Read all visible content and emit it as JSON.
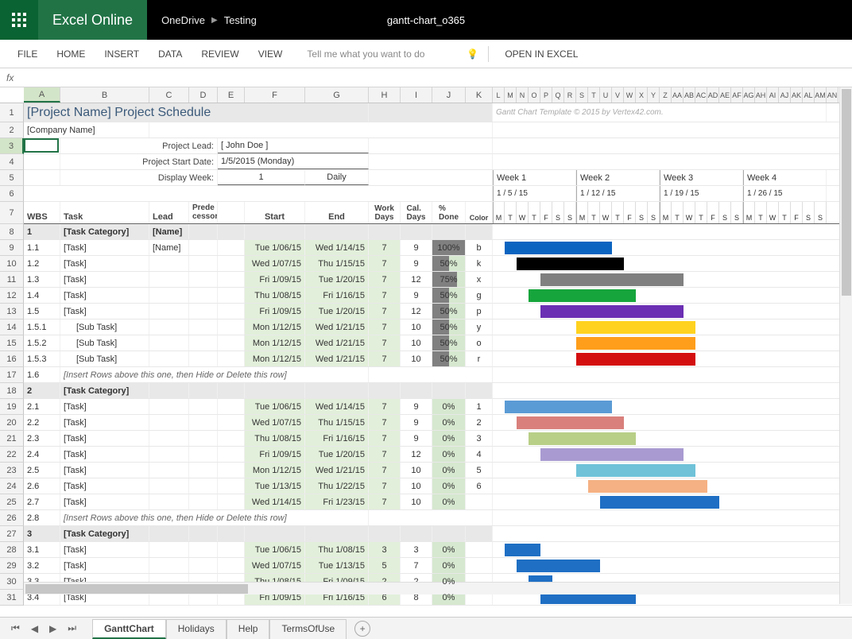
{
  "app": {
    "name": "Excel Online",
    "breadcrumb": [
      "OneDrive",
      "Testing"
    ],
    "doc_title": "gantt-chart_o365",
    "brand_color": "#217346"
  },
  "ribbon": {
    "tabs": [
      "FILE",
      "HOME",
      "INSERT",
      "DATA",
      "REVIEW",
      "VIEW"
    ],
    "tell_me_placeholder": "Tell me what you want to do",
    "open_in_excel": "OPEN IN EXCEL"
  },
  "formula_bar": {
    "label": "fx"
  },
  "columns": {
    "letters": [
      "A",
      "B",
      "C",
      "D",
      "E",
      "F",
      "G",
      "H",
      "I",
      "J",
      "K",
      "L",
      "M",
      "N",
      "O",
      "P",
      "Q",
      "R",
      "S",
      "T",
      "U",
      "V",
      "W",
      "X",
      "Y",
      "Z",
      "AA",
      "AB",
      "AC",
      "AD",
      "AE",
      "AF",
      "AG",
      "AH",
      "AI",
      "AJ",
      "AK",
      "AL",
      "AM",
      "AN"
    ],
    "widths_main": {
      "A": 46,
      "B": 112,
      "C": 50,
      "D": 36,
      "E": 34,
      "F": 76,
      "G": 80,
      "H": 40,
      "I": 40,
      "J": 42,
      "K": 34
    },
    "day_col_width": 15,
    "selected": "A"
  },
  "selection": {
    "cell": "A3",
    "row": 3,
    "col": "A"
  },
  "rows_visible": 31,
  "sheet": {
    "project_title": "[Project Name] Project Schedule",
    "watermark": "Gantt Chart Template © 2015 by Vertex42.com.",
    "company_name": "[Company Name]",
    "project_lead_label": "Project Lead:",
    "project_lead": "[ John Doe ]",
    "start_date_label": "Project Start Date:",
    "start_date": "1/5/2015 (Monday)",
    "display_week_label": "Display Week:",
    "display_week_num": "1",
    "display_week_mode": "Daily",
    "weeks": [
      {
        "label": "Week 1",
        "date": "1 / 5 / 15"
      },
      {
        "label": "Week 2",
        "date": "1 / 12 / 15"
      },
      {
        "label": "Week 3",
        "date": "1 / 19 / 15"
      },
      {
        "label": "Week 4",
        "date": "1 / 26 / 15"
      }
    ],
    "day_letters": [
      "M",
      "T",
      "W",
      "T",
      "F",
      "S",
      "S"
    ],
    "col_headers": {
      "wbs": "WBS",
      "task": "Task",
      "lead": "Lead",
      "pred": "Prede\ncessor",
      "start": "Start",
      "end": "End",
      "work": "Work\nDays",
      "cal": "Cal.\nDays",
      "done": "%\nDone",
      "color": "Color"
    },
    "tasks": [
      {
        "row": 8,
        "type": "cat",
        "wbs": "1",
        "task": "[Task Category]",
        "lead": "[Name]"
      },
      {
        "row": 9,
        "wbs": "1.1",
        "task": "[Task]",
        "lead": "[Name]",
        "start": "Tue 1/06/15",
        "end": "Wed 1/14/15",
        "work": "7",
        "cal": "9",
        "done": 100,
        "color": "b",
        "bar_start": 1,
        "bar_len": 9,
        "bar_color": "#0b64c0"
      },
      {
        "row": 10,
        "wbs": "1.2",
        "task": "[Task]",
        "start": "Wed 1/07/15",
        "end": "Thu 1/15/15",
        "work": "7",
        "cal": "9",
        "done": 50,
        "color": "k",
        "bar_start": 2,
        "bar_len": 9,
        "bar_color": "#000000"
      },
      {
        "row": 11,
        "wbs": "1.3",
        "task": "[Task]",
        "start": "Fri 1/09/15",
        "end": "Tue 1/20/15",
        "work": "7",
        "cal": "12",
        "done": 75,
        "color": "x",
        "bar_start": 4,
        "bar_len": 12,
        "bar_color": "#808080"
      },
      {
        "row": 12,
        "wbs": "1.4",
        "task": "[Task]",
        "start": "Thu 1/08/15",
        "end": "Fri 1/16/15",
        "work": "7",
        "cal": "9",
        "done": 50,
        "color": "g",
        "bar_start": 3,
        "bar_len": 9,
        "bar_color": "#16a53c"
      },
      {
        "row": 13,
        "wbs": "1.5",
        "task": "[Task]",
        "start": "Fri 1/09/15",
        "end": "Tue 1/20/15",
        "work": "7",
        "cal": "12",
        "done": 50,
        "color": "p",
        "bar_start": 4,
        "bar_len": 12,
        "bar_color": "#6b2fb3"
      },
      {
        "row": 14,
        "wbs": "1.5.1",
        "task": "[Sub Task]",
        "indent": 1,
        "start": "Mon 1/12/15",
        "end": "Wed 1/21/15",
        "work": "7",
        "cal": "10",
        "done": 50,
        "color": "y",
        "bar_start": 7,
        "bar_len": 10,
        "bar_color": "#ffd21f"
      },
      {
        "row": 15,
        "wbs": "1.5.2",
        "task": "[Sub Task]",
        "indent": 1,
        "start": "Mon 1/12/15",
        "end": "Wed 1/21/15",
        "work": "7",
        "cal": "10",
        "done": 50,
        "color": "o",
        "bar_start": 7,
        "bar_len": 10,
        "bar_color": "#ff9e1b"
      },
      {
        "row": 16,
        "wbs": "1.5.3",
        "task": "[Sub Task]",
        "indent": 1,
        "start": "Mon 1/12/15",
        "end": "Wed 1/21/15",
        "work": "7",
        "cal": "10",
        "done": 50,
        "color": "r",
        "bar_start": 7,
        "bar_len": 10,
        "bar_color": "#d40f0f"
      },
      {
        "row": 17,
        "wbs": "1.6",
        "type": "note",
        "task": "[Insert Rows above this one, then Hide or Delete this row]"
      },
      {
        "row": 18,
        "type": "cat",
        "wbs": "2",
        "task": "[Task Category]"
      },
      {
        "row": 19,
        "wbs": "2.1",
        "task": "[Task]",
        "start": "Tue 1/06/15",
        "end": "Wed 1/14/15",
        "work": "7",
        "cal": "9",
        "done": 0,
        "color": "1",
        "bar_start": 1,
        "bar_len": 9,
        "bar_color": "#5b9bd5"
      },
      {
        "row": 20,
        "wbs": "2.2",
        "task": "[Task]",
        "start": "Wed 1/07/15",
        "end": "Thu 1/15/15",
        "work": "7",
        "cal": "9",
        "done": 0,
        "color": "2",
        "bar_start": 2,
        "bar_len": 9,
        "bar_color": "#d9807c"
      },
      {
        "row": 21,
        "wbs": "2.3",
        "task": "[Task]",
        "start": "Thu 1/08/15",
        "end": "Fri 1/16/15",
        "work": "7",
        "cal": "9",
        "done": 0,
        "color": "3",
        "bar_start": 3,
        "bar_len": 9,
        "bar_color": "#b8cf87"
      },
      {
        "row": 22,
        "wbs": "2.4",
        "task": "[Task]",
        "start": "Fri 1/09/15",
        "end": "Tue 1/20/15",
        "work": "7",
        "cal": "12",
        "done": 0,
        "color": "4",
        "bar_start": 4,
        "bar_len": 12,
        "bar_color": "#a99bd1"
      },
      {
        "row": 23,
        "wbs": "2.5",
        "task": "[Task]",
        "start": "Mon 1/12/15",
        "end": "Wed 1/21/15",
        "work": "7",
        "cal": "10",
        "done": 0,
        "color": "5",
        "bar_start": 7,
        "bar_len": 10,
        "bar_color": "#6fc2d8"
      },
      {
        "row": 24,
        "wbs": "2.6",
        "task": "[Task]",
        "start": "Tue 1/13/15",
        "end": "Thu 1/22/15",
        "work": "7",
        "cal": "10",
        "done": 0,
        "color": "6",
        "bar_start": 8,
        "bar_len": 10,
        "bar_color": "#f5b183"
      },
      {
        "row": 25,
        "wbs": "2.7",
        "task": "[Task]",
        "start": "Wed 1/14/15",
        "end": "Fri 1/23/15",
        "work": "7",
        "cal": "10",
        "done": 0,
        "bar_start": 9,
        "bar_len": 10,
        "bar_color": "#1f6fc4"
      },
      {
        "row": 26,
        "wbs": "2.8",
        "type": "note",
        "task": "[Insert Rows above this one, then Hide or Delete this row]"
      },
      {
        "row": 27,
        "type": "cat",
        "wbs": "3",
        "task": "[Task Category]"
      },
      {
        "row": 28,
        "wbs": "3.1",
        "task": "[Task]",
        "start": "Tue 1/06/15",
        "end": "Thu 1/08/15",
        "work": "3",
        "cal": "3",
        "done": 0,
        "bar_start": 1,
        "bar_len": 3,
        "bar_color": "#1f6fc4"
      },
      {
        "row": 29,
        "wbs": "3.2",
        "task": "[Task]",
        "start": "Wed 1/07/15",
        "end": "Tue 1/13/15",
        "work": "5",
        "cal": "7",
        "done": 0,
        "bar_start": 2,
        "bar_len": 7,
        "bar_color": "#1f6fc4"
      },
      {
        "row": 30,
        "wbs": "3.3",
        "task": "[Task]",
        "start": "Thu 1/08/15",
        "end": "Fri 1/09/15",
        "work": "2",
        "cal": "2",
        "done": 0,
        "bar_start": 3,
        "bar_len": 2,
        "bar_color": "#1f6fc4"
      },
      {
        "row": 31,
        "wbs": "3.4",
        "task": "[Task]",
        "start": "Fri 1/09/15",
        "end": "Fri 1/16/15",
        "work": "6",
        "cal": "8",
        "done": 0,
        "bar_start": 4,
        "bar_len": 8,
        "bar_color": "#1f6fc4"
      }
    ]
  },
  "sheet_tabs": {
    "active": "GanttChart",
    "tabs": [
      "GanttChart",
      "Holidays",
      "Help",
      "TermsOfUse"
    ]
  }
}
